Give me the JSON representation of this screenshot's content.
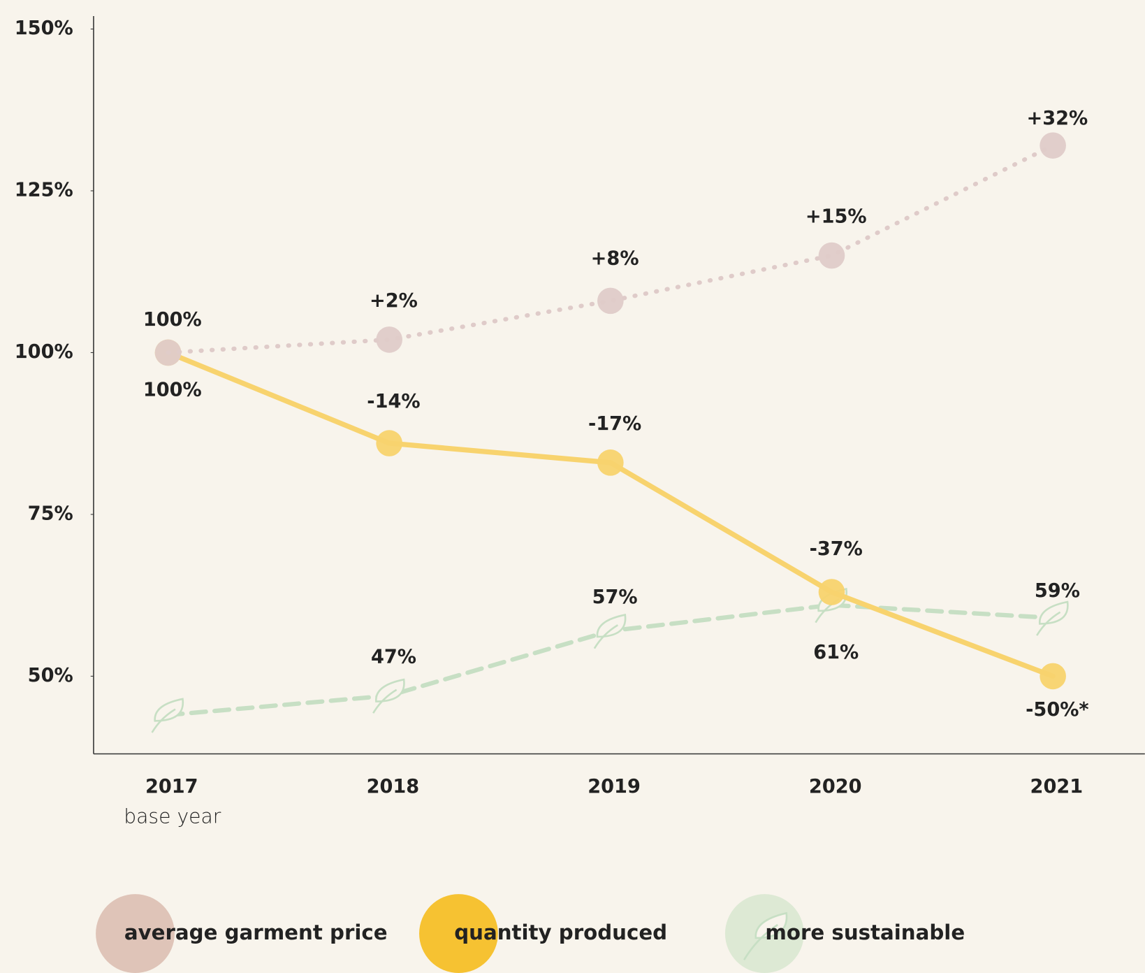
{
  "chart_data": {
    "type": "line",
    "categories": [
      "2017",
      "2018",
      "2019",
      "2020",
      "2021"
    ],
    "annotations": [
      "base year"
    ],
    "series": [
      {
        "name": "average garment price",
        "color": "#dfcbc9",
        "legend_color": "#dfc4b8",
        "style": "dotted",
        "values": [
          100,
          102,
          108,
          115,
          132
        ],
        "value_labels": [
          "100%",
          "+2%",
          "+8%",
          "+15%",
          "+32%"
        ]
      },
      {
        "name": "quantity produced",
        "color": "#f8d36e",
        "legend_color": "#f6c232",
        "style": "solid",
        "values": [
          100,
          86,
          83,
          63,
          50
        ],
        "value_labels": [
          "100%",
          "-14%",
          "-17%",
          "-37%",
          "-50%*"
        ]
      },
      {
        "name": "more sustainable",
        "color": "#c7dfc4",
        "legend_color": "#dde9d4",
        "style": "dashed",
        "values": [
          44,
          47,
          57,
          61,
          59
        ],
        "value_labels": [
          null,
          "47%",
          "57%",
          "61%",
          "59%"
        ]
      }
    ],
    "ylim": [
      38,
      152
    ],
    "yticks": [
      {
        "value": 50,
        "label": "50%"
      },
      {
        "value": 75,
        "label": "75%"
      },
      {
        "value": 100,
        "label": "100%"
      },
      {
        "value": 125,
        "label": "125%"
      },
      {
        "value": 150,
        "label": "150%"
      }
    ],
    "grid": false
  }
}
